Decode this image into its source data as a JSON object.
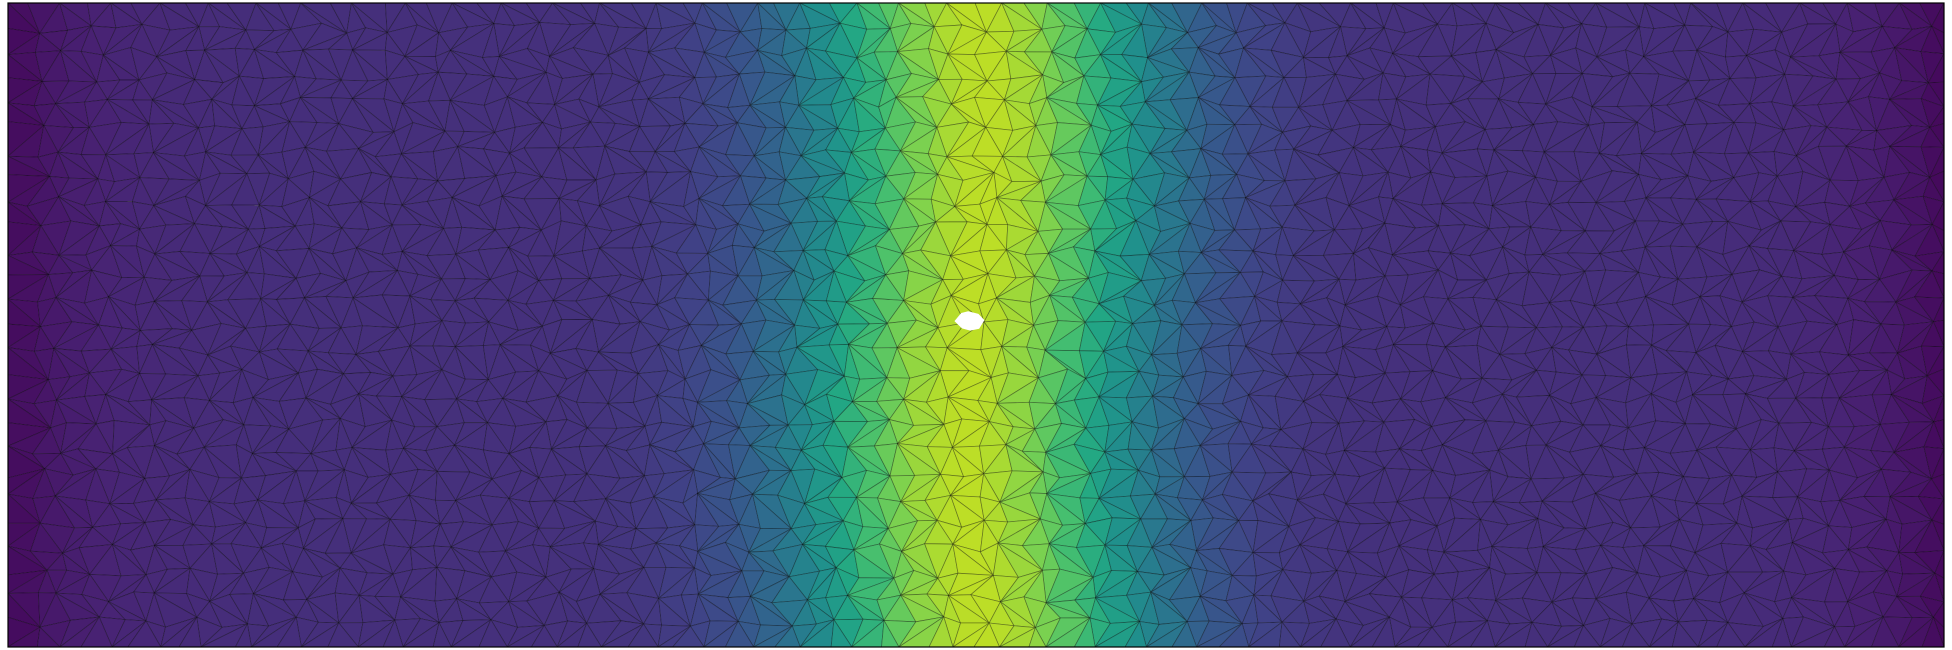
{
  "figure": {
    "type": "triangulated-mesh-field-plot",
    "colormap": "viridis",
    "field": {
      "profile": "gaussian-band",
      "direction": "vertical",
      "center_x": 0.5,
      "band_width": 0.065,
      "band_offset_amplitude": 0.006,
      "min_value": 0.0,
      "max_value": 0.9,
      "background_value": 0.14
    },
    "mesh": {
      "element": "triangle",
      "edge_color": "#000000",
      "edge_opacity": 0.35,
      "columns": 78,
      "rows": 26
    },
    "hole": {
      "shape": "small-void",
      "fill": "#ffffff"
    },
    "frame": {
      "stroke": "#000000"
    }
  }
}
